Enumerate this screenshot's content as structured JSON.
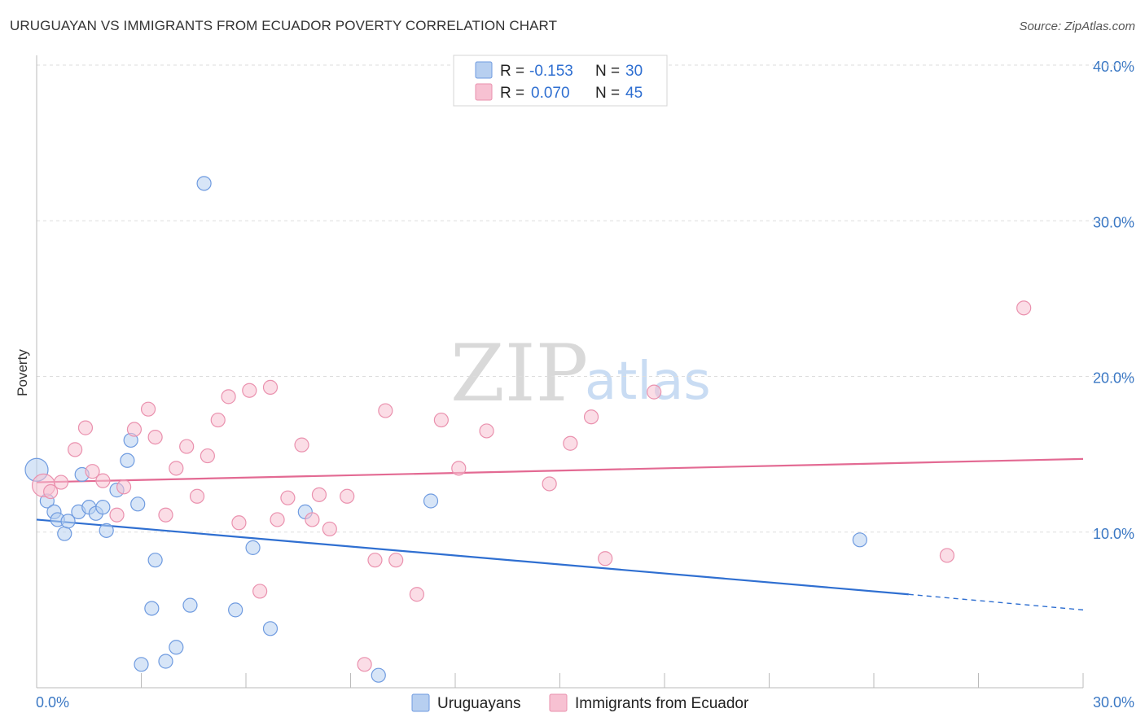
{
  "header": {
    "title": "URUGUAYAN VS IMMIGRANTS FROM ECUADOR POVERTY CORRELATION CHART",
    "source": "Source: ZipAtlas.com"
  },
  "watermark": {
    "zip": "ZIP",
    "atlas": "atlas"
  },
  "colors": {
    "blue": "#2f6fd1",
    "blue_fill": "#b7cff0",
    "pink": "#e36a93",
    "pink_fill": "#f7c1d2",
    "grid": "#dddddd"
  },
  "legend": {
    "rows": [
      {
        "r_label": "R =",
        "r_value": "-0.153",
        "n_label": "N =",
        "n_value": "30"
      },
      {
        "r_label": "R =",
        "r_value": "0.070",
        "n_label": "N =",
        "n_value": "45"
      }
    ]
  },
  "bottom_legend": {
    "items": [
      {
        "label": "Uruguayans"
      },
      {
        "label": "Immigrants from Ecuador"
      }
    ]
  },
  "chart_data": {
    "type": "scatter",
    "title": "URUGUAYAN VS IMMIGRANTS FROM ECUADOR POVERTY CORRELATION CHART",
    "xlabel": "",
    "ylabel": "Poverty",
    "xlim": [
      0,
      30
    ],
    "ylim": [
      0,
      40
    ],
    "x_tick_labels": [
      "0.0%",
      "30.0%"
    ],
    "y_ticks": [
      10,
      20,
      30,
      40
    ],
    "y_tick_labels": [
      "10.0%",
      "20.0%",
      "30.0%",
      "40.0%"
    ],
    "grid": true,
    "series": [
      {
        "name": "Uruguayans",
        "r": -0.153,
        "n": 30,
        "trend": {
          "x0": 0,
          "y0": 10.8,
          "x1": 25,
          "y1": 6.0,
          "dashed_to_x": 30,
          "dashed_to_y": 5.0
        },
        "points": [
          [
            0.0,
            14.0
          ],
          [
            0.3,
            12.0
          ],
          [
            0.5,
            11.3
          ],
          [
            0.6,
            10.8
          ],
          [
            0.8,
            9.9
          ],
          [
            0.9,
            10.7
          ],
          [
            1.2,
            11.3
          ],
          [
            1.3,
            13.7
          ],
          [
            1.5,
            11.6
          ],
          [
            1.7,
            11.2
          ],
          [
            1.9,
            11.6
          ],
          [
            2.0,
            10.1
          ],
          [
            2.3,
            12.7
          ],
          [
            2.6,
            14.6
          ],
          [
            2.7,
            15.9
          ],
          [
            2.9,
            11.8
          ],
          [
            3.0,
            1.5
          ],
          [
            3.3,
            5.1
          ],
          [
            3.4,
            8.2
          ],
          [
            3.7,
            1.7
          ],
          [
            4.0,
            2.6
          ],
          [
            4.4,
            5.3
          ],
          [
            4.8,
            32.4
          ],
          [
            5.7,
            5.0
          ],
          [
            6.2,
            9.0
          ],
          [
            6.7,
            3.8
          ],
          [
            7.7,
            11.3
          ],
          [
            9.8,
            0.8
          ],
          [
            11.3,
            12.0
          ],
          [
            23.6,
            9.5
          ]
        ]
      },
      {
        "name": "Immigrants from Ecuador",
        "r": 0.07,
        "n": 45,
        "trend": {
          "x0": 0,
          "y0": 13.2,
          "x1": 30,
          "y1": 14.7
        },
        "points": [
          [
            0.2,
            13.0
          ],
          [
            0.4,
            12.6
          ],
          [
            0.7,
            13.2
          ],
          [
            1.1,
            15.3
          ],
          [
            1.4,
            16.7
          ],
          [
            1.6,
            13.9
          ],
          [
            1.9,
            13.3
          ],
          [
            2.3,
            11.1
          ],
          [
            2.5,
            12.9
          ],
          [
            2.8,
            16.6
          ],
          [
            3.2,
            17.9
          ],
          [
            3.4,
            16.1
          ],
          [
            3.7,
            11.1
          ],
          [
            4.0,
            14.1
          ],
          [
            4.3,
            15.5
          ],
          [
            4.6,
            12.3
          ],
          [
            4.9,
            14.9
          ],
          [
            5.2,
            17.2
          ],
          [
            5.5,
            18.7
          ],
          [
            5.8,
            10.6
          ],
          [
            6.1,
            19.1
          ],
          [
            6.4,
            6.2
          ],
          [
            6.7,
            19.3
          ],
          [
            6.9,
            10.8
          ],
          [
            7.2,
            12.2
          ],
          [
            7.6,
            15.6
          ],
          [
            7.9,
            10.8
          ],
          [
            8.1,
            12.4
          ],
          [
            8.4,
            10.2
          ],
          [
            8.9,
            12.3
          ],
          [
            9.4,
            1.5
          ],
          [
            9.7,
            8.2
          ],
          [
            10.0,
            17.8
          ],
          [
            10.3,
            8.2
          ],
          [
            10.9,
            6.0
          ],
          [
            11.6,
            17.2
          ],
          [
            12.1,
            14.1
          ],
          [
            12.9,
            16.5
          ],
          [
            14.7,
            13.1
          ],
          [
            15.3,
            15.7
          ],
          [
            15.9,
            17.4
          ],
          [
            16.3,
            8.3
          ],
          [
            17.7,
            19.0
          ],
          [
            26.1,
            8.5
          ],
          [
            28.3,
            24.4
          ]
        ]
      }
    ]
  }
}
